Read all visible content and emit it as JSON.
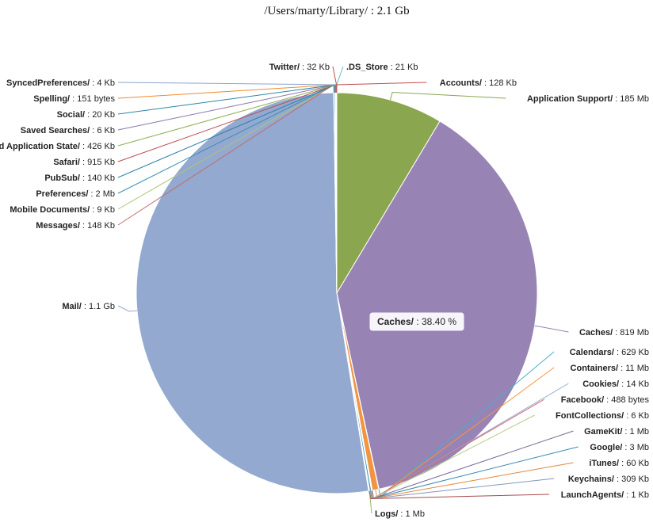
{
  "chart_data": {
    "type": "pie",
    "title": "/Users/marty/Library/ : 2.1 Gb",
    "unit": "Mb",
    "tooltip": {
      "category": "Caches/",
      "percent": "38.40 %"
    },
    "slices": [
      {
        "name": "Application Support/",
        "size_label": "185 Mb",
        "value": 185,
        "color": "#8aa64e",
        "line": "#8aa64e"
      },
      {
        "name": "Caches/",
        "size_label": "819 Mb",
        "value": 819,
        "color": "#9883b5",
        "line": "#9883b5"
      },
      {
        "name": "Calendars/",
        "size_label": "629 Kb",
        "value": 0.6,
        "color": "#4aaccd",
        "line": "#4aaccd"
      },
      {
        "name": "Containers/",
        "size_label": "11 Mb",
        "value": 11,
        "color": "#f29542",
        "line": "#f29542"
      },
      {
        "name": "Cookies/",
        "size_label": "14 Kb",
        "value": 0.2,
        "color": "#93acd1",
        "line": "#93acd1"
      },
      {
        "name": "Facebook/",
        "size_label": "488 bytes",
        "value": 0.2,
        "color": "#d3696f",
        "line": "#d3696f"
      },
      {
        "name": "FontCollections/",
        "size_label": "6 Kb",
        "value": 0.2,
        "color": "#b4cc88",
        "line": "#b4cc88"
      },
      {
        "name": "GameKit/",
        "size_label": "1 Mb",
        "value": 1,
        "color": "#7b6a9c",
        "line": "#7b6a9c"
      },
      {
        "name": "Google/",
        "size_label": "3 Mb",
        "value": 3,
        "color": "#3a8ab0",
        "line": "#3a8ab0"
      },
      {
        "name": "iTunes/",
        "size_label": "60 Kb",
        "value": 0.2,
        "color": "#e4863c",
        "line": "#e4863c"
      },
      {
        "name": "Keychains/",
        "size_label": "309 Kb",
        "value": 0.3,
        "color": "#8197bf",
        "line": "#8197bf"
      },
      {
        "name": "LaunchAgents/",
        "size_label": "1 Kb",
        "value": 0.2,
        "color": "#a94a4d",
        "line": "#a94a4d"
      },
      {
        "name": "Logs/",
        "size_label": "1 Mb",
        "value": 1,
        "color": "#9ab561",
        "line": "#9ab561"
      },
      {
        "name": "Mail/",
        "size_label": "1.1 Gb",
        "value": 1126,
        "color": "#93a9cf",
        "line": "#93a9cf"
      },
      {
        "name": "Messages/",
        "size_label": "148 Kb",
        "value": 0.2,
        "color": "#c56b6f",
        "line": "#c56b6f"
      },
      {
        "name": "Mobile Documents/",
        "size_label": "9 Kb",
        "value": 0.2,
        "color": "#a9c67a",
        "line": "#a9c67a"
      },
      {
        "name": "Preferences/",
        "size_label": "2 Mb",
        "value": 2,
        "color": "#3b8fb6",
        "line": "#3b8fb6"
      },
      {
        "name": "PubSub/",
        "size_label": "140 Kb",
        "value": 0.2,
        "color": "#2f7fa8",
        "line": "#2f7fa8"
      },
      {
        "name": "Safari/",
        "size_label": "915 Kb",
        "value": 0.9,
        "color": "#b94d52",
        "line": "#b94d52"
      },
      {
        "name": "Saved Application State/",
        "size_label": "426 Kb",
        "value": 0.4,
        "color": "#8db055",
        "line": "#8db055"
      },
      {
        "name": "Saved Searches/",
        "size_label": "6 Kb",
        "value": 0.2,
        "color": "#8a78ad",
        "line": "#8a78ad"
      },
      {
        "name": "Social/",
        "size_label": "20 Kb",
        "value": 0.2,
        "color": "#2e86ab",
        "line": "#2e86ab"
      },
      {
        "name": "Spelling/",
        "size_label": "151 bytes",
        "value": 0.2,
        "color": "#f08a30",
        "line": "#f08a30"
      },
      {
        "name": "SyncedPreferences/",
        "size_label": "4 Kb",
        "value": 0.2,
        "color": "#8ea3ca",
        "line": "#8ea3ca"
      },
      {
        "name": "Twitter/",
        "size_label": "32 Kb",
        "value": 0.2,
        "color": "#c0504d",
        "line": "#c0504d"
      },
      {
        "name": ".DS_Store",
        "size_label": "21 Kb",
        "value": 0.2,
        "color": "#6fb7c9",
        "line": "#6fb7c9"
      },
      {
        "name": "Accounts/",
        "size_label": "128 Kb",
        "value": 0.2,
        "color": "#c0504d",
        "line": "#c0504d"
      }
    ]
  }
}
